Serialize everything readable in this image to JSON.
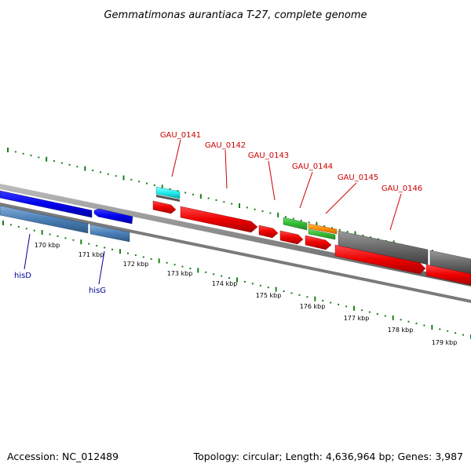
{
  "title": "Gemmatimonas aurantiaca T-27, complete genome",
  "footer": {
    "accession": "Accession: NC_012489",
    "summary": "Topology: circular; Length: 4,636,964 bp; Genes: 3,987"
  },
  "colors": {
    "locus_label": "#cc0000",
    "named_gene_label": "#000099",
    "tick": "#1a7f1a",
    "backbone": "#888888"
  },
  "ticks": [
    "170 kbp",
    "171 kbp",
    "172 kbp",
    "173 kbp",
    "174 kbp",
    "175 kbp",
    "176 kbp",
    "177 kbp",
    "178 kbp",
    "179 kbp"
  ],
  "labels": {
    "gau_0141": "GAU_0141",
    "gau_0142": "GAU_0142",
    "gau_0143": "GAU_0143",
    "gau_0144": "GAU_0144",
    "gau_0145": "GAU_0145",
    "gau_0146": "GAU_0146",
    "hisD": "hisD",
    "hisG": "hisG"
  }
}
